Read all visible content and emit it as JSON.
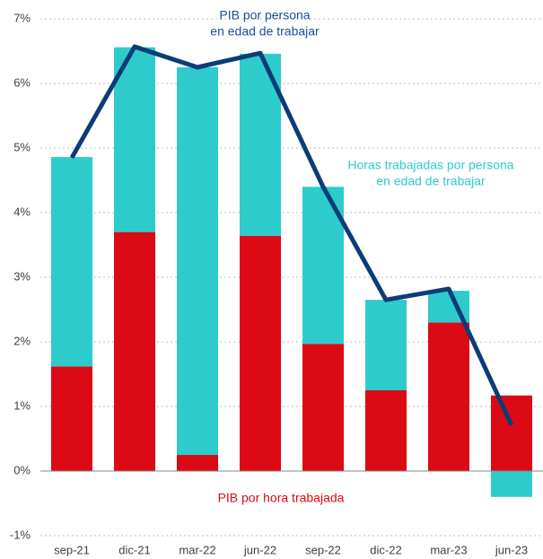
{
  "chart_data": {
    "type": "bar-line",
    "categories": [
      "sep-21",
      "dic-21",
      "mar-22",
      "jun-22",
      "sep-22",
      "dic-22",
      "mar-23",
      "jun-23"
    ],
    "series": [
      {
        "kind": "bar",
        "color": "#dc0a14",
        "values": [
          1.62,
          3.7,
          0.25,
          3.64,
          1.97,
          1.25,
          2.3,
          1.17
        ]
      },
      {
        "kind": "bar",
        "color": "#2ecbcc",
        "values": [
          3.24,
          2.86,
          6.0,
          2.82,
          2.43,
          1.4,
          0.49,
          -0.4
        ]
      },
      {
        "kind": "line",
        "color": "#0c3c78",
        "values": [
          4.85,
          6.57,
          6.25,
          6.47,
          4.4,
          2.65,
          2.82,
          0.71
        ]
      }
    ],
    "annotations": [
      {
        "lines": [
          "PIB por persona",
          "en edad de trabajar"
        ],
        "color": "#1a4f96"
      },
      {
        "lines": [
          "Horas trabajadas  por persona",
          "en edad de trabajar"
        ],
        "color": "#2ecbcc"
      },
      {
        "lines": [
          "PIB por hora trabajada"
        ],
        "color": "#dc0a14"
      }
    ],
    "ylim": [
      -1,
      7
    ],
    "yticks": [
      {
        "value": -1,
        "label": "-1%"
      },
      {
        "value": 0,
        "label": "0%"
      },
      {
        "value": 1,
        "label": "1%"
      },
      {
        "value": 2,
        "label": "2%"
      },
      {
        "value": 3,
        "label": "3%"
      },
      {
        "value": 4,
        "label": "4%"
      },
      {
        "value": 5,
        "label": "5%"
      },
      {
        "value": 6,
        "label": "6%"
      },
      {
        "value": 7,
        "label": "7%"
      }
    ],
    "grid": true
  }
}
